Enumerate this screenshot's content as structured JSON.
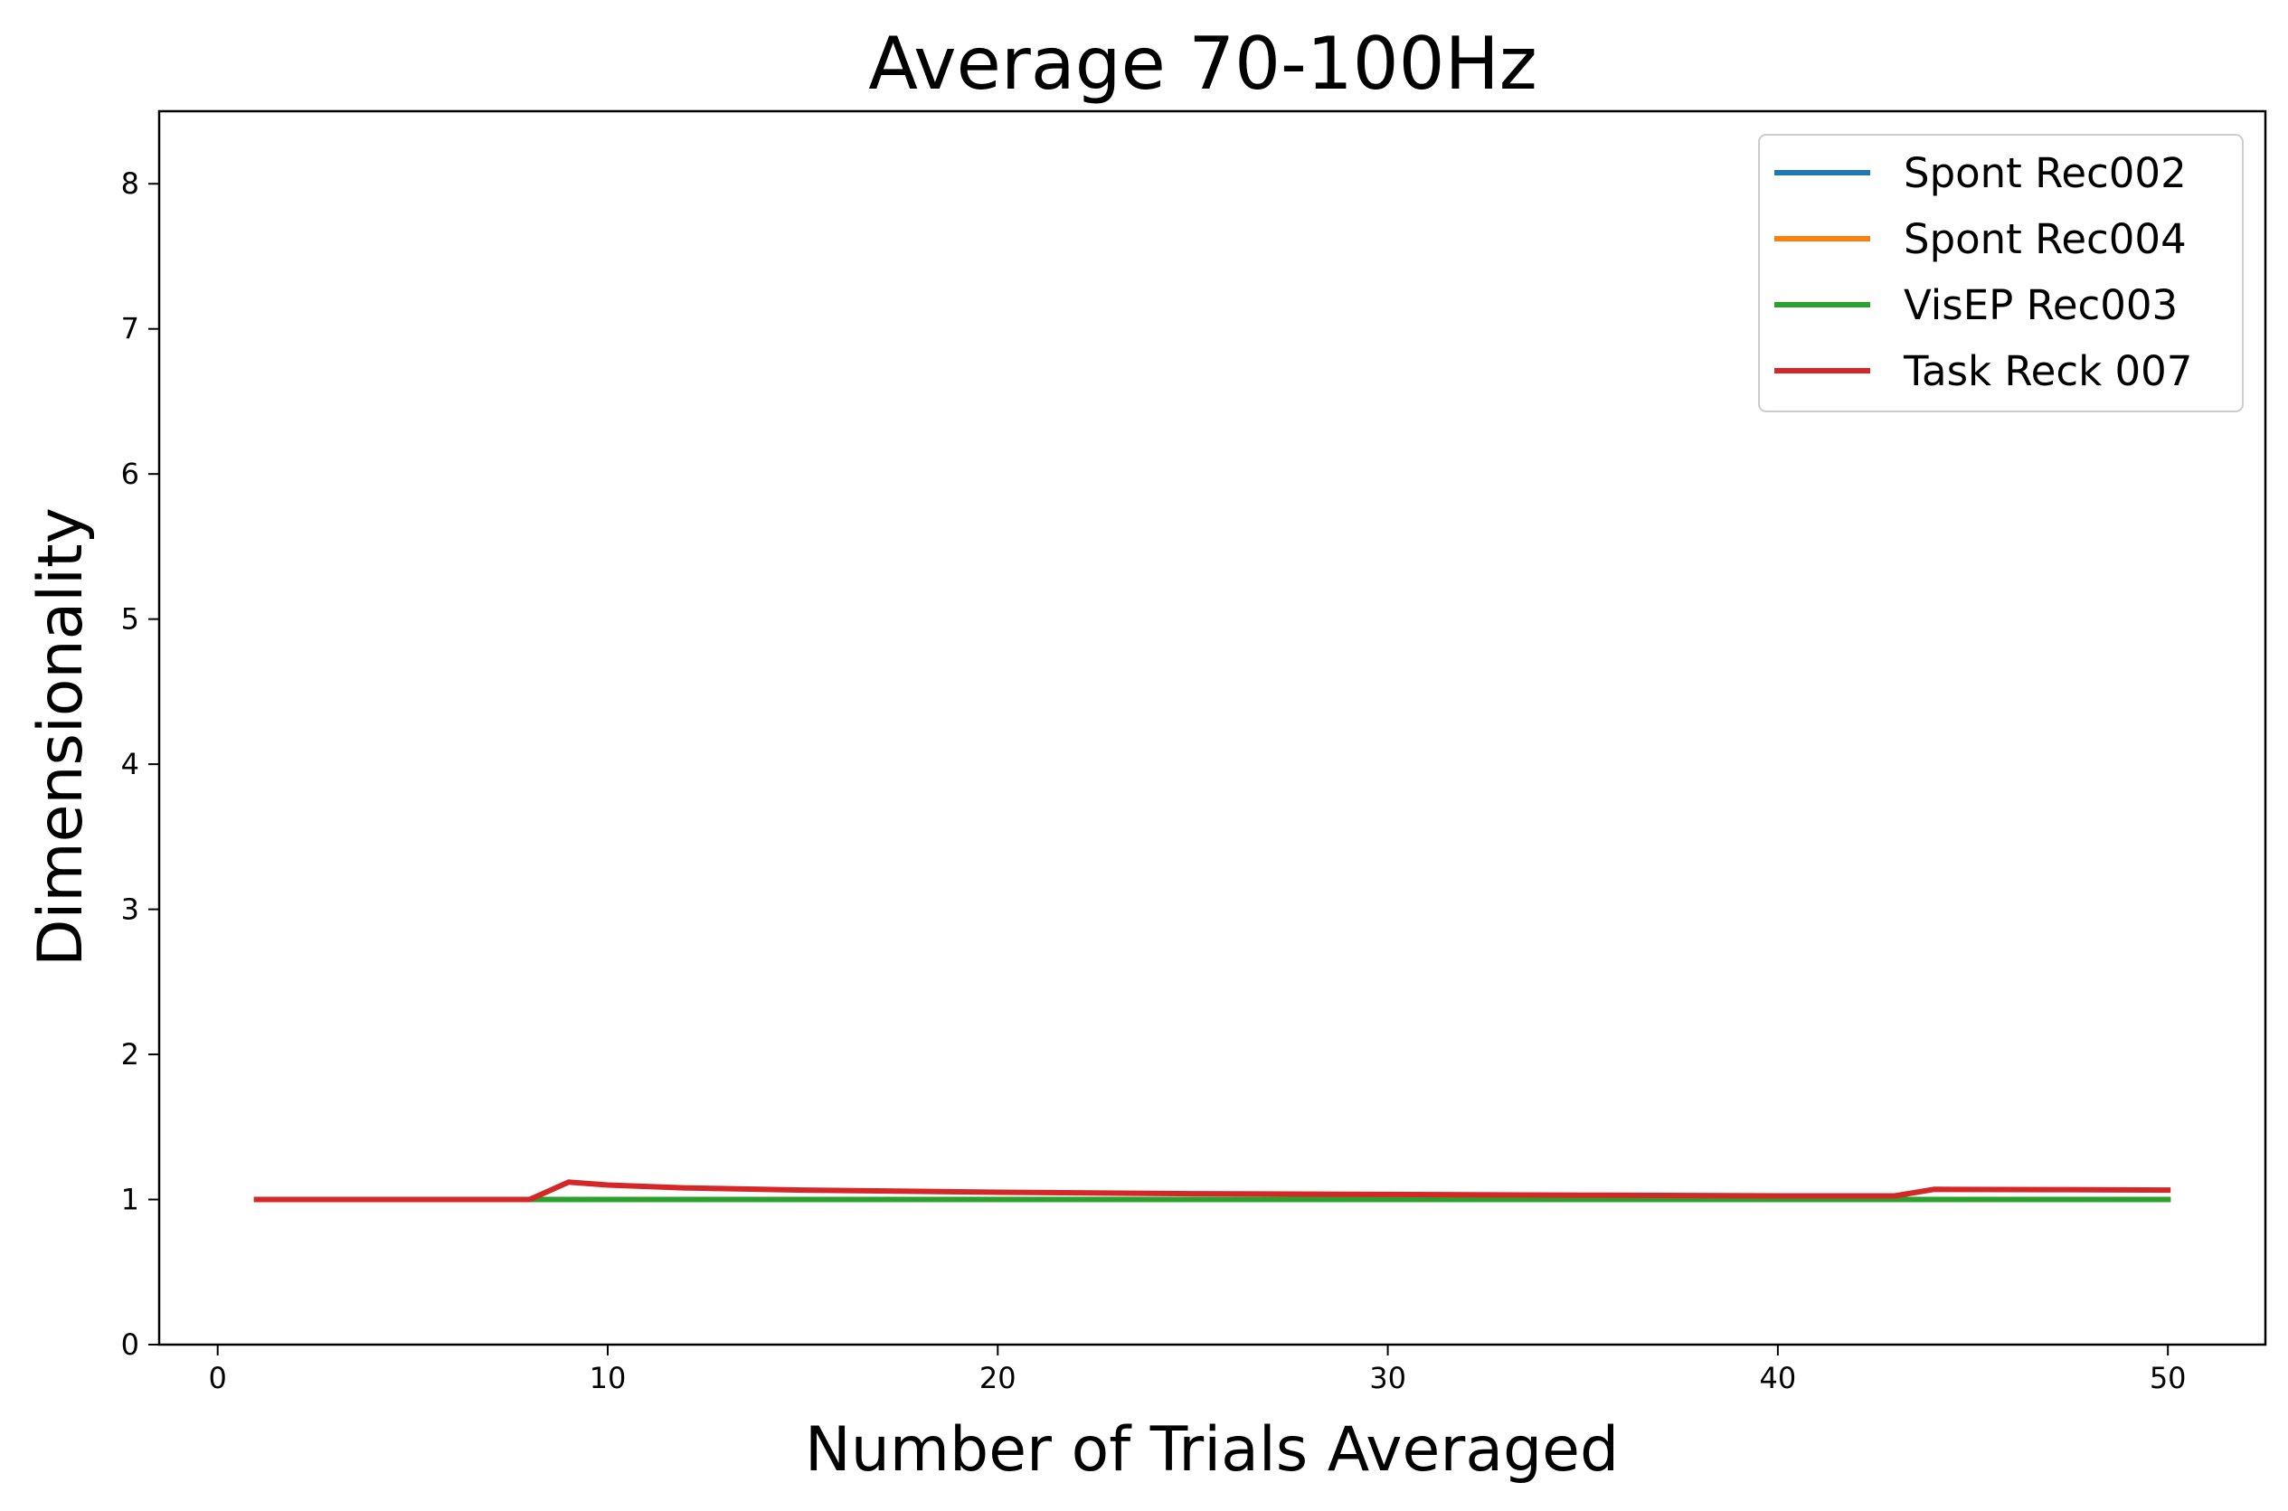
{
  "chart_data": {
    "type": "line",
    "title": "Average 70-100Hz",
    "xlabel": "Number of Trials Averaged",
    "ylabel": "Dimensionality",
    "xlim": [
      -1.5,
      52.5
    ],
    "ylim": [
      0,
      8.5
    ],
    "xticks": [
      0,
      10,
      20,
      30,
      40,
      50
    ],
    "yticks": [
      0,
      1,
      2,
      3,
      4,
      5,
      6,
      7,
      8
    ],
    "grid": false,
    "legend_position": "top-right",
    "series": [
      {
        "name": "Spont Rec002",
        "color": "#1f77b4",
        "points": [
          [
            1,
            1.0
          ],
          [
            50,
            1.0
          ]
        ]
      },
      {
        "name": "Spont Rec004",
        "color": "#ff7f0e",
        "points": [
          [
            1,
            1.0
          ],
          [
            50,
            1.0
          ]
        ]
      },
      {
        "name": "VisEP Rec003",
        "color": "#2ca02c",
        "points": [
          [
            1,
            1.0
          ],
          [
            50,
            1.0
          ]
        ]
      },
      {
        "name": "Task Reck 007",
        "color": "#d62728",
        "points": [
          [
            1,
            1.0
          ],
          [
            8,
            1.0
          ],
          [
            9,
            1.12
          ],
          [
            10,
            1.1
          ],
          [
            12,
            1.08
          ],
          [
            15,
            1.065
          ],
          [
            20,
            1.05
          ],
          [
            25,
            1.04
          ],
          [
            30,
            1.035
          ],
          [
            35,
            1.03
          ],
          [
            40,
            1.025
          ],
          [
            43,
            1.025
          ],
          [
            44,
            1.07
          ],
          [
            47,
            1.068
          ],
          [
            50,
            1.065
          ]
        ]
      }
    ]
  }
}
